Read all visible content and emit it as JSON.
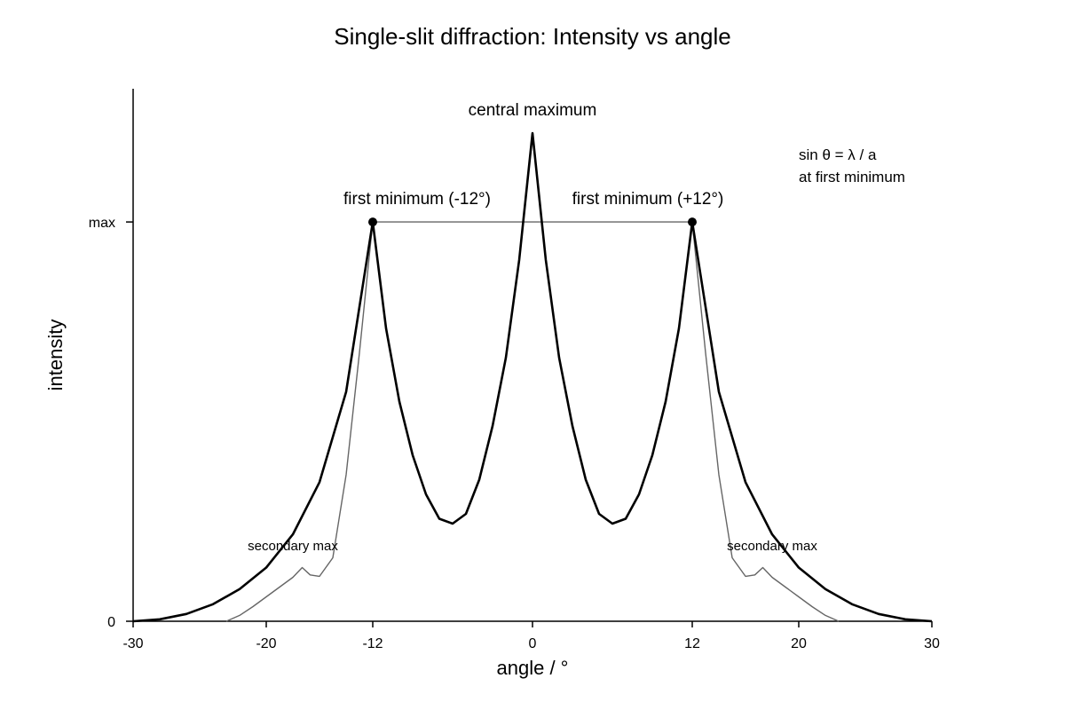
{
  "chart_data": {
    "type": "line",
    "title": "Single-slit diffraction: Intensity vs angle",
    "xlabel": "angle / °",
    "ylabel": "intensity",
    "xlim": [
      -30,
      30
    ],
    "ylim": [
      0,
      1
    ],
    "x_ticks": [
      {
        "value": -30,
        "label": "-30"
      },
      {
        "value": -20,
        "label": "-20"
      },
      {
        "value": -12,
        "label": "-12"
      },
      {
        "value": 0,
        "label": "0"
      },
      {
        "value": 12,
        "label": "12"
      },
      {
        "value": 20,
        "label": "20"
      },
      {
        "value": 30,
        "label": "30"
      }
    ],
    "y_ticks": [
      {
        "value": 0,
        "label": "0"
      },
      {
        "value": 0.818,
        "label": "max"
      }
    ],
    "grid": false,
    "series": [
      {
        "color": "#000000",
        "points": [
          [
            -30,
            0.0
          ],
          [
            -28,
            0.004
          ],
          [
            -26,
            0.015
          ],
          [
            -24,
            0.035
          ],
          [
            -22,
            0.066
          ],
          [
            -20,
            0.11
          ],
          [
            -18,
            0.178
          ],
          [
            -16,
            0.285
          ],
          [
            -14,
            0.47
          ],
          [
            -12,
            0.818
          ],
          [
            -11,
            0.6
          ],
          [
            -10,
            0.45
          ],
          [
            -9,
            0.34
          ],
          [
            -8,
            0.26
          ],
          [
            -7,
            0.21
          ],
          [
            -6,
            0.2
          ],
          [
            -5,
            0.22
          ],
          [
            -4,
            0.29
          ],
          [
            -3,
            0.4
          ],
          [
            -2,
            0.54
          ],
          [
            -1,
            0.74
          ],
          [
            0,
            1.0
          ],
          [
            1,
            0.74
          ],
          [
            2,
            0.54
          ],
          [
            3,
            0.4
          ],
          [
            4,
            0.29
          ],
          [
            5,
            0.22
          ],
          [
            6,
            0.2
          ],
          [
            7,
            0.21
          ],
          [
            8,
            0.26
          ],
          [
            9,
            0.34
          ],
          [
            10,
            0.45
          ],
          [
            11,
            0.6
          ],
          [
            12,
            0.818
          ],
          [
            14,
            0.47
          ],
          [
            16,
            0.285
          ],
          [
            18,
            0.178
          ],
          [
            20,
            0.11
          ],
          [
            22,
            0.066
          ],
          [
            24,
            0.035
          ],
          [
            26,
            0.015
          ],
          [
            28,
            0.004
          ],
          [
            30,
            0.0
          ]
        ]
      },
      {
        "color": "#666666",
        "points": [
          [
            -23,
            0.0
          ],
          [
            -22,
            0.012
          ],
          [
            -21,
            0.03
          ],
          [
            -20,
            0.05
          ],
          [
            -19,
            0.07
          ],
          [
            -18,
            0.09
          ],
          [
            -17.3,
            0.11
          ],
          [
            -16.7,
            0.095
          ],
          [
            -16,
            0.092
          ],
          [
            -15,
            0.13
          ],
          [
            -14,
            0.3
          ],
          [
            -13,
            0.55
          ],
          [
            -12,
            0.818
          ],
          [
            12,
            0.818
          ],
          [
            13,
            0.55
          ],
          [
            14,
            0.3
          ],
          [
            15,
            0.13
          ],
          [
            16,
            0.092
          ],
          [
            16.7,
            0.095
          ],
          [
            17.3,
            0.11
          ],
          [
            18,
            0.09
          ],
          [
            19,
            0.07
          ],
          [
            20,
            0.05
          ],
          [
            21,
            0.03
          ],
          [
            22,
            0.012
          ],
          [
            23,
            0.0
          ]
        ]
      }
    ],
    "markers": [
      {
        "x": -12,
        "y": 0.818
      },
      {
        "x": 12,
        "y": 0.818
      }
    ],
    "annotations": [
      {
        "id": "central",
        "text": "central maximum",
        "x": 0,
        "y": 1.0
      },
      {
        "id": "firstmin-left",
        "text": "first minimum (-12°)",
        "x": -12,
        "y": 0.818
      },
      {
        "id": "firstmin-right",
        "text": "first minimum (+12°)",
        "x": 12,
        "y": 0.818
      },
      {
        "id": "secondary-left",
        "text": "secondary max",
        "x": -18,
        "y": 0.12
      },
      {
        "id": "secondary-right",
        "text": "secondary max",
        "x": 18,
        "y": 0.12
      }
    ],
    "note": [
      "sin θ = λ / a",
      "at first minimum"
    ]
  }
}
